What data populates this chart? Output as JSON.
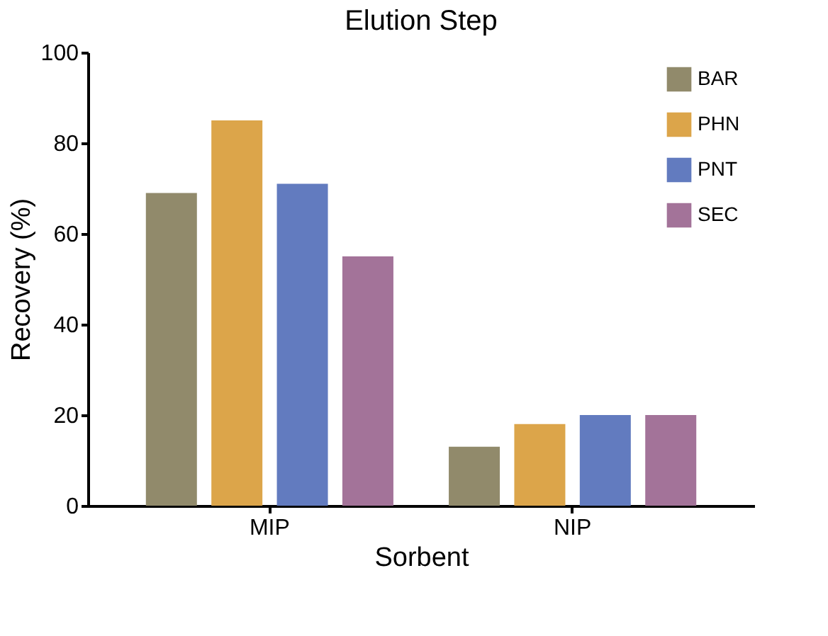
{
  "chart_data": {
    "type": "bar",
    "title": "Elution Step",
    "xlabel": "Sorbent",
    "ylabel": "Recovery (%)",
    "categories": [
      "MIP",
      "NIP"
    ],
    "series": [
      {
        "name": "BAR",
        "color": "#918a6b",
        "values": [
          69,
          13
        ]
      },
      {
        "name": "PHN",
        "color": "#dca54a",
        "values": [
          85,
          18
        ]
      },
      {
        "name": "PNT",
        "color": "#627bbf",
        "values": [
          71,
          20
        ]
      },
      {
        "name": "SEC",
        "color": "#a37399",
        "values": [
          55,
          20
        ]
      }
    ],
    "ylim": [
      0,
      100
    ],
    "yticks": [
      0,
      20,
      40,
      60,
      80,
      100
    ],
    "grid": false,
    "legend": "top right"
  }
}
